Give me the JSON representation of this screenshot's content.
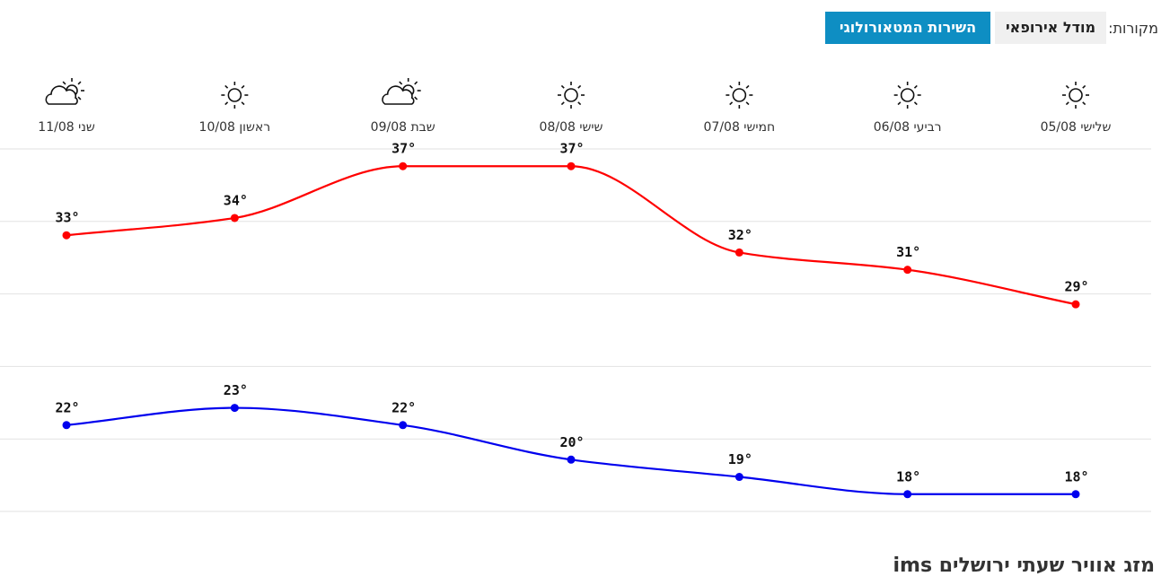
{
  "sources": {
    "label": "מקורות:",
    "options": [
      "מודל אירופאי",
      "השירות המטאורולוגי"
    ]
  },
  "chart_data": {
    "type": "line",
    "categories": [
      "שלישי 05/08",
      "רביעי 06/08",
      "חמישי 07/08",
      "שישי 08/08",
      "שבת 09/08",
      "ראשון 10/08",
      "שני 11/08"
    ],
    "icons": [
      "sun",
      "sun",
      "sun",
      "sun",
      "cloud-sun",
      "sun",
      "cloud-sun"
    ],
    "ylim": [
      17,
      38
    ],
    "yticks": [
      38,
      33.8,
      29.6,
      25.4,
      21.2,
      17
    ],
    "grid": true,
    "series": [
      {
        "color": "#ff0000",
        "values": [
          29,
          31,
          32,
          37,
          37,
          34,
          33
        ],
        "value_labels": [
          "29°",
          "31°",
          "32°",
          "37°",
          "37°",
          "34°",
          "33°"
        ]
      },
      {
        "color": "#0000ee",
        "values": [
          18,
          18,
          19,
          20,
          22,
          23,
          22
        ],
        "value_labels": [
          "18°",
          "18°",
          "19°",
          "20°",
          "22°",
          "23°",
          "22°"
        ]
      }
    ]
  },
  "footer": {
    "title": "מזג אוויר שעתי ירושלים ims"
  }
}
